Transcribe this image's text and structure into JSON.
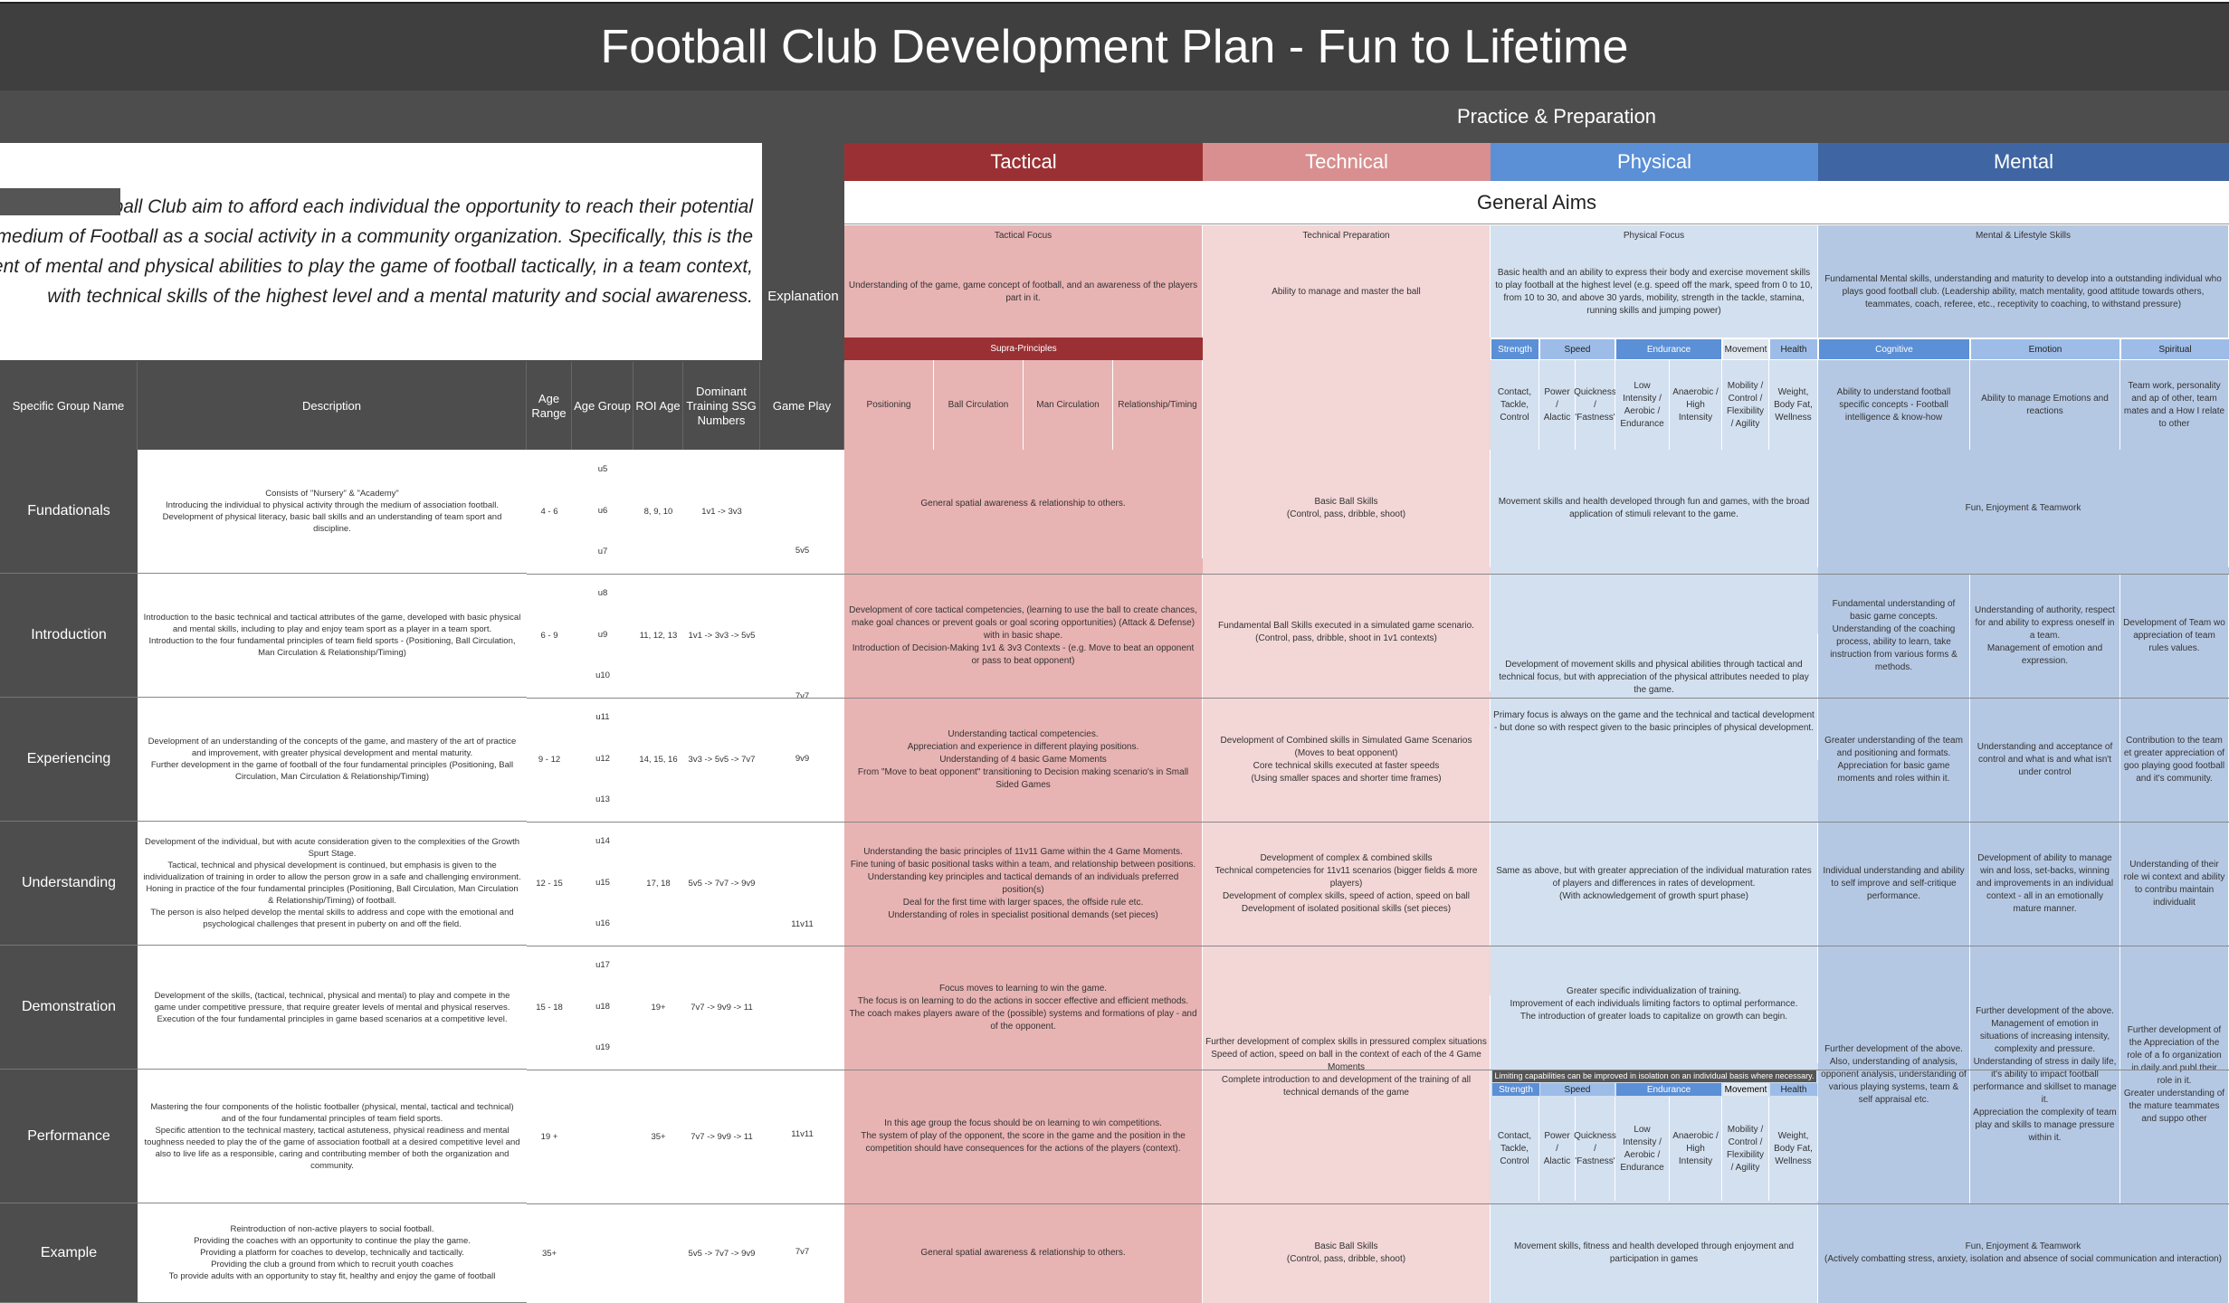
{
  "title": "Football Club Development Plan - Fun to Lifetime",
  "band_label": "Practice & Preparation",
  "intro": {
    "lines": [
      "Football Club aim to afford each individual the opportunity to reach their potential",
      "ugh the medium of Football as a social activity in a community organization. Specifically, this is the",
      "elopment of mental and physical abilities to play the game of football tactically, in a team context,",
      "with technical skills of the highest level and a mental maturity and social awareness."
    ]
  },
  "explanation_label": "Explanation",
  "pillars": [
    "Tactical",
    "Technical",
    "Physical",
    "Mental"
  ],
  "general_aims": "General Aims",
  "focus_headers": [
    "Tactical Focus",
    "Technical Preparation",
    "Physical Focus",
    "Mental & Lifestyle Skills"
  ],
  "focus_text": [
    "Understanding of the game, game concept of football, and an awareness of the players part in it.",
    "Ability to manage and master the ball",
    "Basic health and an ability to express their body and exercise movement skills to play football at the highest level (e.g. speed off the mark, speed from 0 to 10, from 10 to 30, and above 30 yards, mobility, strength in the tackle, stamina, running skills and jumping power)",
    "Fundamental Mental skills, understanding and maturity to develop into a outstanding individual who plays good football club. (Leadership ability, match mentality, good attitude towards others, teammates, coach, referee, etc., receptivity to coaching, to withstand pressure)"
  ],
  "supra_principles": "Supra-Principles",
  "supra_items": [
    "Positioning",
    "Ball Circulation",
    "Man Circulation",
    "Relationship/Timing"
  ],
  "phys_cats": [
    "Strength",
    "Speed",
    "Endurance",
    "Movement",
    "Health"
  ],
  "phys_items": [
    "Contact, Tackle, Control",
    "Power / Alactic",
    "Quickness / 'Fastness'",
    "Low Intensity / Aerobic / Endurance",
    "Anaerobic / High Intensity",
    "Mobility / Control / Flexibility / Agility",
    "Weight, Body Fat, Wellness"
  ],
  "mental_cats": [
    "Cognitive",
    "Emotion",
    "Spiritual"
  ],
  "mental_items": [
    "Ability to understand football specific concepts - Football intelligence & know-how",
    "Ability to manage Emotions and reactions",
    "Team work, personality and ap of other, team mates and a How I relate to other"
  ],
  "columns": {
    "group": "Specific Group Name",
    "description": "Description",
    "age_range": "Age Range",
    "age_group": "Age Group",
    "roi_age": "ROI Age",
    "ssg": "Dominant Training SSG Numbers",
    "game_play": "Game Play"
  },
  "rows": [
    {
      "name": "Fundationals",
      "description": "Consists of \"Nursery\" & \"Academy\"\nIntroducing the individual to physical activity through the medium of association football.\nDevelopment of physical literacy, basic ball skills and an understanding of team sport and discipline.",
      "age_range": "4 - 6",
      "age_groups": [
        "u5",
        "u6",
        "u7"
      ],
      "roi": "8, 9, 10",
      "ssg": "1v1 -> 3v3",
      "tactical": "General spatial awareness & relationship to others.",
      "technical": "Basic Ball Skills\n(Control, pass, dribble, shoot)",
      "physical": "Movement skills and health developed through fun and games, with the broad application of stimuli relevant to the game.",
      "mental": "Fun, Enjoyment & Teamwork"
    },
    {
      "name": "Introduction",
      "description": "Introduction to the basic technical and tactical attributes of the game, developed with basic physical and mental skills, including to play and enjoy team sport as a player in a team sport.\nIntroduction to the four fundamental principles of team field sports - (Positioning, Ball Circulation, Man Circulation & Relationship/Timing)",
      "age_range": "6 - 9",
      "age_groups": [
        "u8",
        "u9",
        "u10"
      ],
      "roi": "11, 12, 13",
      "ssg": "1v1 -> 3v3 -> 5v5",
      "tactical": "Development of core tactical competencies, (learning to use the ball to create chances, make goal chances or prevent goals or goal scoring opportunities) (Attack & Defense) with in basic shape.\nIntroduction of Decision-Making 1v1 & 3v3 Contexts - (e.g. Move to beat an opponent or pass to beat opponent)",
      "technical": "Fundamental Ball Skills executed in a simulated game scenario.\n(Control, pass, dribble, shoot in 1v1 contexts)",
      "mental_cog": "Fundamental understanding of basic game concepts.\nUnderstanding of the coaching process, ability to learn, take instruction from various forms & methods.",
      "mental_emo": "Understanding of authority, respect for and ability to express oneself in a team.\nManagement of emotion and expression.",
      "mental_spi": "Development of Team wo appreciation of team rules values."
    },
    {
      "name": "Experiencing",
      "description": "Development of an understanding of the concepts of the game, and mastery of the art of practice and improvement, with greater physical development and mental maturity.\nFurther development in the game of football of the four fundamental principles (Positioning, Ball Circulation, Man Circulation & Relationship/Timing)",
      "age_range": "9 - 12",
      "age_groups": [
        "u11",
        "u12",
        "u13"
      ],
      "roi": "14, 15, 16",
      "ssg": "3v3 -> 5v5 -> 7v7",
      "tactical": "Understanding tactical competencies.\nAppreciation and experience in different playing positions.\nUnderstanding of 4 basic Game Moments\nFrom \"Move to beat opponent\" transitioning to Decision making scenario's in Small Sided Games",
      "technical": "Development of Combined skills in Simulated Game Scenarios\n(Moves to beat opponent)\nCore technical skills executed at faster speeds\n(Using smaller spaces and shorter time frames)",
      "mental_cog": "Greater understanding of the team and positioning and formats.\nAppreciation for basic game moments and roles within it.",
      "mental_emo": "Understanding and acceptance of control and what is and what isn't under control",
      "mental_spi": "Contribution to the team et greater appreciation of goo playing good football and it's community."
    },
    {
      "name": "Understanding",
      "description": "Development of the individual, but with acute consideration given to the complexities of the Growth Spurt Stage.\nTactical, technical and physical development is continued, but emphasis is given to the individualization of training in order to allow the person grow in a safe and challenging environment.\nHoning in practice of the four fundamental principles (Positioning, Ball Circulation, Man Circulation & Relationship/Timing) of football.\nThe person is also helped develop the mental skills to address and cope with the emotional and psychological challenges that present in puberty on and off the field.",
      "age_range": "12 - 15",
      "age_groups": [
        "u14",
        "u15",
        "u16"
      ],
      "roi": "17, 18",
      "ssg": "5v5 -> 7v7 -> 9v9",
      "tactical": "Understanding the basic principles of 11v11 Game within the 4 Game Moments.\nFine tuning of basic positional tasks within a team, and relationship between positions.\nUnderstanding key principles and tactical demands of an individuals preferred position(s)\nDeal for the first time with larger spaces, the offside rule etc.\nUnderstanding of roles in specialist positional demands (set pieces)",
      "technical": "Development of complex & combined skills\nTechnical competencies for 11v11 scenarios (bigger fields & more players)\nDevelopment of complex skills, speed of action, speed on ball\nDevelopment of isolated positional skills (set pieces)",
      "physical": "Same as above, but with greater appreciation of the individual maturation rates of players and differences in rates of development.\n(With acknowledgement of growth spurt phase)",
      "mental_cog": "Individual understanding and ability to self improve and self-critique performance.",
      "mental_emo": "Development of ability to manage win and loss, set-backs, winning and improvements in an individual context - all in an emotionally mature manner.",
      "mental_spi": "Understanding of their role wi context and ability to contribu maintain individualit"
    },
    {
      "name": "Demonstration",
      "description": "Development of the skills, (tactical, technical, physical and mental) to play and compete in the game under competitive pressure, that require greater levels of mental and physical reserves.\nExecution of the four fundamental principles in game based scenarios at a competitive level.",
      "age_range": "15 - 18",
      "age_groups": [
        "u17",
        "u18",
        "u19"
      ],
      "roi": "19+",
      "ssg": "7v7 -> 9v9 -> 11",
      "tactical": "Focus moves to learning to win the game.\nThe focus is on learning to do the actions in soccer effective and efficient methods.\nThe coach makes players aware of the (possible) systems and formations of play - and of the opponent.",
      "physical": "Greater specific individualization of training.\nImprovement of each individuals limiting factors to optimal performance.\nThe introduction of greater loads to capitalize on growth can begin."
    },
    {
      "name": "Performance",
      "description": "Mastering the four components of the holistic footballer (physical, mental, tactical and technical) and of the four fundamental principles of team field sports.\nSpecific attention to the technical mastery, tactical astuteness, physical readiness and mental toughness needed to play the of the game of association football at a desired competitive level and also to live life as a responsible, caring and contributing member of both the organization and community.",
      "age_range": "19 +",
      "roi": "35+",
      "ssg": "7v7 -> 9v9 -> 11",
      "game": "11v11",
      "tactical": "In this age group the focus should be on learning to win competitions.\nThe system of play of the opponent, the score in the game and the position in the competition should have consequences for the actions of the players (context).",
      "limit_note": "Limiting capabilities can be improved in isolation on an individual basis where necessary."
    },
    {
      "name": "Example",
      "description": "Reintroduction of non-active players to social football.\nProviding the coaches with an opportunity to continue the play the game.\nProviding a platform for coaches to develop, technically and tactically.\nProviding the club a ground from which to recruit youth coaches\nTo provide adults with an opportunity to stay fit, healthy and enjoy the game of football",
      "age_range": "35+",
      "ssg": "5v5 -> 7v7 -> 9v9",
      "game": "7v7",
      "tactical": "General spatial awareness & relationship to others.",
      "technical": "Basic Ball Skills\n(Control, pass, dribble, shoot)",
      "physical": "Movement skills, fitness and health developed through enjoyment and participation in games",
      "mental": "Fun, Enjoyment & Teamwork\n(Actively combatting stress, anxiety, isolation and absence of social communication and interaction)"
    }
  ],
  "merged": {
    "game_5v5": "5v5",
    "game_7v7": "7v7",
    "game_9v9": "9v9",
    "game_11v11": "11v11",
    "phys_intro_exp": "Development of movement skills and physical abilities through tactical and technical focus, but with appreciation of the physical attributes needed to play the game.\n\nPrimary focus is always on the game and the technical and tactical development - but done so with respect given to the basic principles of physical development.",
    "tech_demo_perf": "Further development of complex skills in pressured complex situations\nSpeed of action, speed on ball in the context of each of the 4 Game Moments\nComplete introduction to and development of the training of all technical demands of the game",
    "mental_cog_demo": "Further development of the above.\nAlso, understanding of analysis, opponent analysis, understanding of various playing systems, team & self appraisal etc.",
    "mental_emo_demo": "Further development of the above.\nManagement of emotion in situations of increasing intensity, complexity and pressure.\nUnderstanding of stress in daily life, it's ability to impact football performance and skillset to manage it.\nAppreciation the complexity of team play and skills to manage pressure within it.",
    "mental_spi_demo": "Further development of the Appreciation of the role of a fo organization in daily and publ their role in it.\nGreater understanding of the mature teammates and suppo other"
  },
  "colors": {
    "tactical": "#9a3033",
    "technical": "#d98f8f",
    "physical": "#5b8fd6",
    "mental": "#3f66a3",
    "dark": "#4d4d4d"
  }
}
